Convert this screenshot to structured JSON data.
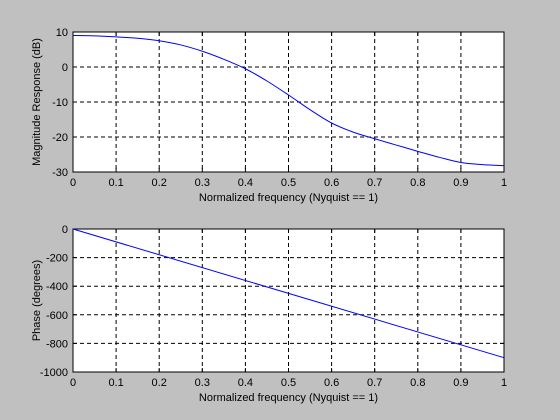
{
  "figure": {
    "background": "#c0c0c0",
    "line_color": "#0000ff"
  },
  "chart_data": [
    {
      "type": "line",
      "title": "",
      "xlabel": "Normalized frequency (Nyquist == 1)",
      "ylabel": "Magnitude Response (dB)",
      "xlim": [
        0,
        1
      ],
      "ylim": [
        -30,
        10
      ],
      "grid": true,
      "xticks": [
        "0",
        "0.1",
        "0.2",
        "0.3",
        "0.4",
        "0.5",
        "0.6",
        "0.7",
        "0.8",
        "0.9",
        "1"
      ],
      "xtick_values": [
        0,
        0.1,
        0.2,
        0.3,
        0.4,
        0.5,
        0.6,
        0.7,
        0.8,
        0.9,
        1
      ],
      "yticks": [
        "10",
        "0",
        "-10",
        "-20",
        "-30"
      ],
      "ytick_values": [
        10,
        0,
        -10,
        -20,
        -30
      ],
      "series": [
        {
          "x": [
            0,
            0.05,
            0.1,
            0.15,
            0.2,
            0.25,
            0.3,
            0.35,
            0.4,
            0.45,
            0.5,
            0.55,
            0.6,
            0.65,
            0.7,
            0.75,
            0.8,
            0.85,
            0.9,
            0.95,
            1
          ],
          "y": [
            9,
            8.9,
            8.6,
            8.2,
            7.5,
            6.3,
            4.5,
            2.2,
            -0.5,
            -4,
            -8,
            -12.2,
            -16,
            -18.6,
            -20.5,
            -22.3,
            -24.1,
            -25.8,
            -27.3,
            -27.9,
            -28.2
          ],
          "color": "#0000ff"
        }
      ]
    },
    {
      "type": "line",
      "title": "",
      "xlabel": "Normalized frequency (Nyquist == 1)",
      "ylabel": "Phase (degrees)",
      "xlim": [
        0,
        1
      ],
      "ylim": [
        -1000,
        0
      ],
      "grid": true,
      "xticks": [
        "0",
        "0.1",
        "0.2",
        "0.3",
        "0.4",
        "0.5",
        "0.6",
        "0.7",
        "0.8",
        "0.9",
        "1"
      ],
      "xtick_values": [
        0,
        0.1,
        0.2,
        0.3,
        0.4,
        0.5,
        0.6,
        0.7,
        0.8,
        0.9,
        1
      ],
      "yticks": [
        "0",
        "-200",
        "-400",
        "-600",
        "-800",
        "-1000"
      ],
      "ytick_values": [
        0,
        -200,
        -400,
        -600,
        -800,
        -1000
      ],
      "series": [
        {
          "x": [
            0,
            1
          ],
          "y": [
            0,
            -900
          ],
          "color": "#0000ff"
        }
      ]
    }
  ]
}
